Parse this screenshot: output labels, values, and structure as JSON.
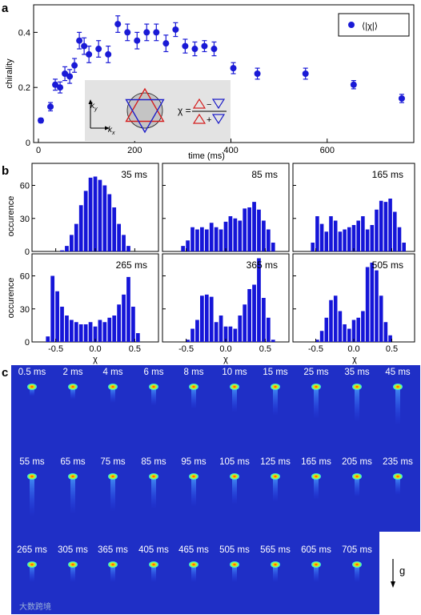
{
  "panels": {
    "a": "a",
    "b": "b",
    "c": "c"
  },
  "chart_data": [
    {
      "type": "scatter",
      "xlabel": "time (ms)",
      "ylabel": "chirality",
      "xlim": [
        -10,
        780
      ],
      "ylim": [
        0,
        0.5
      ],
      "xticks": [
        0,
        200,
        400,
        600
      ],
      "yticks": [
        0,
        0.2,
        0.4
      ],
      "legend": {
        "label": "⟨|χ|⟩",
        "placement": "top-right"
      },
      "inset_formula": "χ = (△ − ▽) / (△ + ▽)",
      "inset_axis_labels": [
        "k",
        "k"
      ],
      "marker_color": "#1a1ad6",
      "series": [
        {
          "x": [
            5,
            25,
            35,
            45,
            55,
            65,
            75,
            85,
            95,
            105,
            125,
            145,
            165,
            185,
            205,
            225,
            245,
            265,
            285,
            305,
            325,
            345,
            365,
            405,
            455,
            555,
            655,
            755
          ],
          "y": [
            0.08,
            0.13,
            0.21,
            0.2,
            0.25,
            0.24,
            0.28,
            0.37,
            0.35,
            0.32,
            0.34,
            0.32,
            0.43,
            0.4,
            0.37,
            0.4,
            0.4,
            0.36,
            0.41,
            0.35,
            0.34,
            0.35,
            0.34,
            0.27,
            0.25,
            0.25,
            0.21,
            0.16
          ],
          "err": [
            0.008,
            0.015,
            0.02,
            0.02,
            0.025,
            0.025,
            0.025,
            0.03,
            0.03,
            0.03,
            0.03,
            0.03,
            0.03,
            0.03,
            0.03,
            0.03,
            0.03,
            0.03,
            0.025,
            0.025,
            0.025,
            0.02,
            0.025,
            0.02,
            0.02,
            0.02,
            0.015,
            0.015
          ]
        }
      ]
    },
    {
      "type": "bar",
      "xlabel": "χ",
      "ylabel": "occurence",
      "xlim": [
        -0.8,
        0.8
      ],
      "ylim": [
        0,
        80
      ],
      "xticks": [
        -0.5,
        0.0,
        0.5
      ],
      "xtick_labels": [
        "-0.5",
        "0.0",
        "0.5"
      ],
      "yticks": [
        0,
        30,
        60
      ],
      "bin_centers": [
        -0.72,
        -0.66,
        -0.6,
        -0.54,
        -0.48,
        -0.42,
        -0.36,
        -0.3,
        -0.24,
        -0.18,
        -0.12,
        -0.06,
        0.0,
        0.06,
        0.12,
        0.18,
        0.24,
        0.3,
        0.36,
        0.42,
        0.48,
        0.54,
        0.6,
        0.66,
        0.72
      ],
      "bar_color": "#1515d8",
      "series": [
        {
          "name": "35 ms",
          "values": [
            0,
            0,
            0,
            0,
            0,
            1,
            5,
            15,
            25,
            42,
            55,
            67,
            68,
            65,
            60,
            52,
            40,
            25,
            15,
            5,
            0,
            0,
            0,
            0,
            0
          ]
        },
        {
          "name": "85 ms",
          "values": [
            0,
            0,
            0,
            5,
            10,
            22,
            20,
            22,
            20,
            26,
            22,
            20,
            27,
            32,
            30,
            28,
            39,
            40,
            45,
            38,
            28,
            20,
            8,
            0,
            0
          ]
        },
        {
          "name": "165 ms",
          "values": [
            0,
            0,
            0,
            8,
            32,
            25,
            18,
            32,
            28,
            18,
            20,
            22,
            24,
            28,
            32,
            20,
            24,
            38,
            46,
            45,
            48,
            36,
            22,
            8,
            0
          ]
        },
        {
          "name": "265 ms",
          "values": [
            0,
            0,
            5,
            60,
            46,
            32,
            24,
            20,
            18,
            16,
            16,
            18,
            14,
            20,
            18,
            22,
            24,
            34,
            43,
            59,
            32,
            8,
            0,
            0,
            0
          ]
        },
        {
          "name": "365 ms",
          "values": [
            0,
            0,
            0,
            0,
            2,
            12,
            20,
            42,
            43,
            41,
            18,
            24,
            14,
            14,
            12,
            24,
            34,
            48,
            52,
            76,
            40,
            22,
            2,
            0,
            0
          ]
        },
        {
          "name": "505 ms",
          "values": [
            0,
            0,
            0,
            0,
            2,
            10,
            22,
            38,
            42,
            28,
            16,
            12,
            20,
            22,
            28,
            68,
            72,
            65,
            42,
            18,
            6,
            0,
            0,
            0,
            0
          ]
        }
      ]
    }
  ],
  "frames": {
    "gravity_label": "g",
    "times": [
      "0.5 ms",
      "2 ms",
      "4 ms",
      "6 ms",
      "8 ms",
      "10 ms",
      "15 ms",
      "25 ms",
      "35 ms",
      "45 ms",
      "55 ms",
      "65 ms",
      "75 ms",
      "85 ms",
      "95 ms",
      "105 ms",
      "125 ms",
      "165 ms",
      "205 ms",
      "235 ms",
      "265 ms",
      "305 ms",
      "365 ms",
      "405 ms",
      "465 ms",
      "505 ms",
      "565 ms",
      "605 ms",
      "705 ms"
    ],
    "background_color": "#1f2fc6",
    "watermark": "大数跨境"
  }
}
